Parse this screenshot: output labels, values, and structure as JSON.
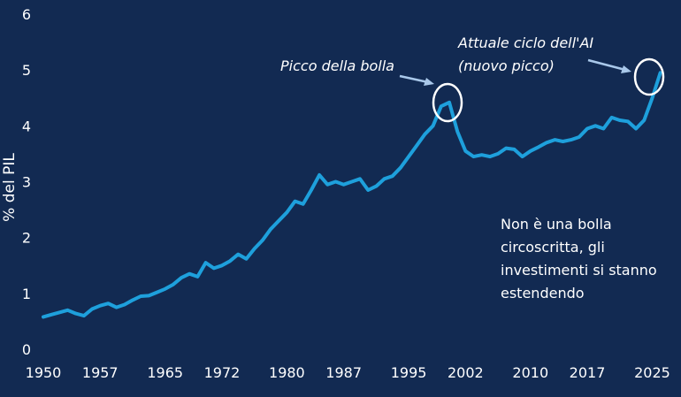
{
  "chart_data": {
    "type": "line",
    "title": "",
    "xlabel": "",
    "ylabel": "% del PIL",
    "xlim": [
      1950,
      2028
    ],
    "ylim": [
      0,
      6
    ],
    "x_ticks": [
      "1950",
      "1957",
      "1965",
      "1972",
      "1980",
      "1987",
      "1995",
      "2002",
      "2010",
      "2017",
      "2025"
    ],
    "y_ticks": [
      "0",
      "1",
      "2",
      "3",
      "4",
      "5",
      "6"
    ],
    "grid": false,
    "colors": {
      "background": "#122a52",
      "line": "#1ea0dc",
      "text": "#ffffff",
      "annotation": "#a9c8ea"
    },
    "series": [
      {
        "x": [
          1950,
          1951,
          1952,
          1953,
          1954,
          1955,
          1956,
          1957,
          1958,
          1959,
          1960,
          1961,
          1962,
          1963,
          1964,
          1965,
          1966,
          1967,
          1968,
          1969,
          1970,
          1971,
          1972,
          1973,
          1974,
          1975,
          1976,
          1977,
          1978,
          1979,
          1980,
          1981,
          1982,
          1983,
          1984,
          1985,
          1986,
          1987,
          1988,
          1989,
          1990,
          1991,
          1992,
          1993,
          1994,
          1995,
          1996,
          1997,
          1998,
          1999,
          2000,
          2001,
          2002,
          2003,
          2004,
          2005,
          2006,
          2007,
          2008,
          2009,
          2010,
          2011,
          2012,
          2013,
          2014,
          2015,
          2016,
          2017,
          2018,
          2019,
          2020,
          2021,
          2022,
          2023,
          2024,
          2025,
          2026
        ],
        "y": [
          0.58,
          0.62,
          0.66,
          0.7,
          0.64,
          0.6,
          0.72,
          0.78,
          0.82,
          0.75,
          0.8,
          0.88,
          0.95,
          0.96,
          1.02,
          1.08,
          1.16,
          1.28,
          1.35,
          1.3,
          1.55,
          1.45,
          1.5,
          1.58,
          1.7,
          1.62,
          1.8,
          1.95,
          2.15,
          2.3,
          2.45,
          2.65,
          2.6,
          2.85,
          3.12,
          2.95,
          3.0,
          2.95,
          3.0,
          3.05,
          2.85,
          2.92,
          3.05,
          3.1,
          3.25,
          3.45,
          3.65,
          3.85,
          4.0,
          4.35,
          4.42,
          3.9,
          3.55,
          3.45,
          3.48,
          3.45,
          3.5,
          3.6,
          3.58,
          3.45,
          3.55,
          3.62,
          3.7,
          3.75,
          3.72,
          3.75,
          3.8,
          3.95,
          4.0,
          3.95,
          4.15,
          4.1,
          4.08,
          3.95,
          4.1,
          4.5,
          4.95
        ]
      }
    ],
    "annotations": {
      "bubble_peak": "Picco della bolla",
      "ai_cycle_line1": "Attuale ciclo dell'AI",
      "ai_cycle_line2": "(nuovo picco)"
    },
    "note": {
      "line1": "Non è una bolla",
      "line2": "circoscritta, gli",
      "line3": "investimenti si stanno",
      "line4": "estendendo"
    }
  }
}
